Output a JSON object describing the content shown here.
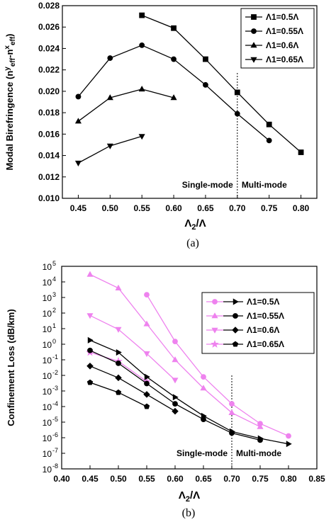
{
  "chart_data": [
    {
      "type": "line",
      "panel_label": "(a)",
      "xlabel": "Λ2/Λ",
      "ylabel": "Modal Birefringence (n^y_eff − n^x_eff)",
      "xlim": [
        0.425,
        0.825
      ],
      "ylim": [
        0.01,
        0.028
      ],
      "x_ticks": [
        "0.45",
        "0.50",
        "0.55",
        "0.60",
        "0.65",
        "0.70",
        "0.75",
        "0.80"
      ],
      "y_ticks": [
        "0.010",
        "0.012",
        "0.014",
        "0.016",
        "0.018",
        "0.020",
        "0.022",
        "0.024",
        "0.026",
        "0.028"
      ],
      "legend_position": "top-right",
      "annotations": [
        "Single-mode",
        "Multi-mode"
      ],
      "divider_x": 0.7,
      "series": [
        {
          "name": "Λ1=0.5Λ",
          "marker": "square",
          "x": [
            0.55,
            0.6,
            0.65,
            0.7,
            0.75,
            0.8
          ],
          "y": [
            0.0271,
            0.0259,
            0.023,
            0.0199,
            0.0169,
            0.0143
          ]
        },
        {
          "name": "Λ1=0.55Λ",
          "marker": "circle",
          "x": [
            0.45,
            0.5,
            0.55,
            0.6,
            0.65,
            0.7,
            0.75
          ],
          "y": [
            0.0195,
            0.0231,
            0.0243,
            0.023,
            0.0206,
            0.0179,
            0.0154
          ]
        },
        {
          "name": "Λ1=0.6Λ",
          "marker": "triangle-up",
          "x": [
            0.45,
            0.5,
            0.55,
            0.6
          ],
          "y": [
            0.0172,
            0.0194,
            0.0202,
            0.0194
          ]
        },
        {
          "name": "Λ1=0.65Λ",
          "marker": "triangle-down",
          "x": [
            0.45,
            0.5,
            0.55
          ],
          "y": [
            0.0133,
            0.0149,
            0.0158
          ]
        }
      ]
    },
    {
      "type": "line",
      "panel_label": "(b)",
      "xlabel": "Λ2/Λ",
      "ylabel": "Confinement Loss (dB/km)",
      "xlim": [
        0.4,
        0.85
      ],
      "ylim_exponent": [
        -8,
        5
      ],
      "log_y": true,
      "x_ticks": [
        "0.40",
        "0.45",
        "0.50",
        "0.55",
        "0.60",
        "0.65",
        "0.70",
        "0.75",
        "0.80",
        "0.85"
      ],
      "y_tick_exponents": [
        5,
        4,
        3,
        2,
        1,
        0,
        -1,
        -2,
        -3,
        -4,
        -5,
        -6,
        -7,
        -8
      ],
      "y_tick_base": "10",
      "legend_position": "top-right",
      "annotations": [
        "Single-mode",
        "Multi-mode"
      ],
      "divider_x": 0.7,
      "colors": {
        "pink": "#ee82ee",
        "black": "#000000"
      },
      "legend_rows": [
        {
          "label": "Λ1=0.5Λ",
          "pink_marker": "circle",
          "black_marker": "triangle-right"
        },
        {
          "label": "Λ1=0.55Λ",
          "pink_marker": "triangle-up",
          "black_marker": "circle"
        },
        {
          "label": "Λ1=0.6Λ",
          "pink_marker": "triangle-down",
          "black_marker": "diamond"
        },
        {
          "label": "Λ1=0.65Λ",
          "pink_marker": "star",
          "black_marker": "pentagon"
        }
      ],
      "series": [
        {
          "group": "pink",
          "marker": "circle",
          "x": [
            0.55,
            0.6,
            0.65,
            0.7,
            0.75,
            0.8
          ],
          "y": [
            1500,
            1.5,
            0.008,
            0.00015,
            8e-06,
            1.3e-06
          ]
        },
        {
          "group": "pink",
          "marker": "triangle-up",
          "x": [
            0.45,
            0.5,
            0.55,
            0.6,
            0.65,
            0.7,
            0.75
          ],
          "y": [
            30000,
            4000,
            20,
            0.1,
            0.0015,
            4e-05,
            5e-06
          ]
        },
        {
          "group": "pink",
          "marker": "triangle-down",
          "x": [
            0.45,
            0.5,
            0.55,
            0.6
          ],
          "y": [
            70,
            9,
            0.25,
            0.005
          ]
        },
        {
          "group": "pink",
          "marker": "star",
          "x": [
            0.45,
            0.5,
            0.55
          ],
          "y": [
            0.3,
            0.08,
            0.004
          ]
        },
        {
          "group": "black",
          "marker": "triangle-right",
          "x": [
            0.45,
            0.5,
            0.55,
            0.6,
            0.65,
            0.7,
            0.75,
            0.8
          ],
          "y": [
            1.8,
            0.3,
            0.008,
            0.0004,
            2.5e-05,
            2.5e-06,
            9e-07,
            4e-07
          ]
        },
        {
          "group": "black",
          "marker": "circle",
          "x": [
            0.45,
            0.5,
            0.55,
            0.6,
            0.65,
            0.7,
            0.75
          ],
          "y": [
            0.4,
            0.06,
            0.003,
            0.00015,
            1.5e-05,
            2e-06,
            7e-07
          ]
        },
        {
          "group": "black",
          "marker": "diamond",
          "x": [
            0.45,
            0.5,
            0.55,
            0.6
          ],
          "y": [
            0.04,
            0.007,
            0.0006,
            5e-05
          ]
        },
        {
          "group": "black",
          "marker": "pentagon",
          "x": [
            0.45,
            0.5,
            0.55
          ],
          "y": [
            0.0035,
            0.0008,
            0.0001
          ]
        }
      ]
    }
  ]
}
